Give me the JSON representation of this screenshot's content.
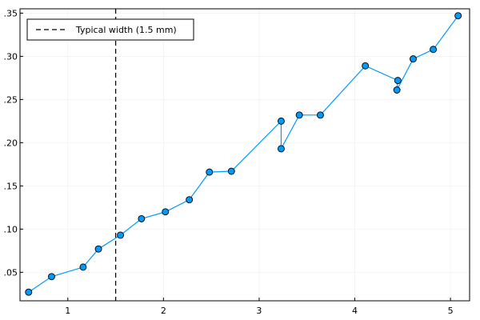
{
  "chart_data": {
    "type": "line",
    "title": "",
    "xlabel": "",
    "ylabel": "",
    "xlim": [
      0.5,
      5.2
    ],
    "ylim": [
      0.017,
      0.355
    ],
    "grid": true,
    "legend_position": "top-left",
    "x_ticks": [
      {
        "value": 1,
        "label": "1"
      },
      {
        "value": 2,
        "label": "2"
      },
      {
        "value": 3,
        "label": "3"
      },
      {
        "value": 4,
        "label": "4"
      },
      {
        "value": 5,
        "label": "5"
      }
    ],
    "y_ticks": [
      {
        "value": 0.05,
        "label": ".05"
      },
      {
        "value": 0.1,
        "label": ".10"
      },
      {
        "value": 0.15,
        "label": ".15"
      },
      {
        "value": 0.2,
        "label": ".20"
      },
      {
        "value": 0.25,
        "label": ".25"
      },
      {
        "value": 0.3,
        "label": ".30"
      },
      {
        "value": 0.35,
        "label": ".35"
      }
    ],
    "series": [
      {
        "color": "#009af9",
        "marker": "circle",
        "x": [
          0.59,
          0.83,
          1.16,
          1.32,
          1.55,
          1.77,
          2.02,
          2.27,
          2.48,
          2.71,
          3.23,
          3.23,
          3.42,
          3.64,
          4.11,
          4.45,
          4.44,
          4.61,
          4.82,
          5.08
        ],
        "y": [
          0.027,
          0.045,
          0.056,
          0.077,
          0.093,
          0.112,
          0.12,
          0.134,
          0.166,
          0.167,
          0.225,
          0.193,
          0.232,
          0.232,
          0.289,
          0.272,
          0.261,
          0.297,
          0.308,
          0.347
        ]
      }
    ],
    "reference_lines": [
      {
        "orientation": "vertical",
        "x": 1.5,
        "style": "dashed",
        "color": "#000000",
        "label": "Typical width (1.5 mm)"
      }
    ],
    "legend": [
      {
        "label": "Typical width (1.5 mm)",
        "style": "dashed",
        "color": "#000000"
      }
    ]
  }
}
